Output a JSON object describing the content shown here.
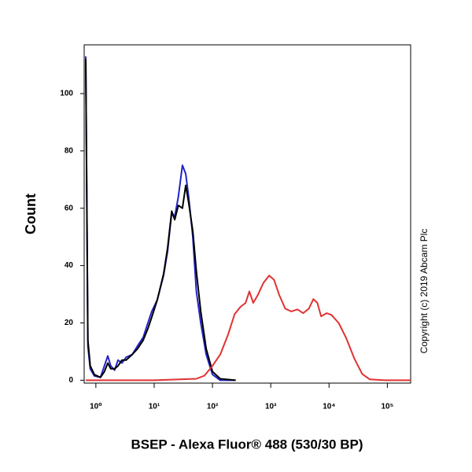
{
  "chart_data": {
    "type": "line",
    "xlabel": "BSEP - Alexa Fluor® 488 (530/30 BP)",
    "ylabel": "Count",
    "annotation": "Copyright (c) 2019 Abcam Plc",
    "xscale": "log",
    "xlim": [
      0.63,
      251000
    ],
    "ylim": [
      -1,
      117
    ],
    "xticks": [
      {
        "value": 1,
        "label": "10⁰"
      },
      {
        "value": 10,
        "label": "10¹"
      },
      {
        "value": 100,
        "label": "10²"
      },
      {
        "value": 1000,
        "label": "10³"
      },
      {
        "value": 10000,
        "label": "10⁴"
      },
      {
        "value": 100000,
        "label": "10⁵"
      }
    ],
    "yticks": [
      0,
      20,
      40,
      60,
      80,
      100
    ],
    "series": [
      {
        "color": "#2323c8",
        "x": [
          0.67,
          0.73,
          0.8,
          0.94,
          1.2,
          1.4,
          1.6,
          1.8,
          2.1,
          2.4,
          2.8,
          3.3,
          4.2,
          5.2,
          6.5,
          7.8,
          9.1,
          11.3,
          14.5,
          17,
          20,
          22.5,
          26,
          30.5,
          34.8,
          39,
          46,
          53,
          63,
          78,
          100,
          136,
          250
        ],
        "values": [
          113,
          12,
          4,
          1.5,
          1,
          5,
          8.5,
          5,
          3.5,
          7,
          6,
          8,
          9,
          12,
          15,
          20,
          24,
          28,
          36.5,
          45,
          58.5,
          57,
          64,
          75,
          72,
          64,
          50,
          31,
          20,
          9,
          2,
          0,
          0
        ]
      },
      {
        "color": "#000000",
        "x": [
          0.67,
          0.73,
          0.8,
          0.94,
          1.2,
          1.4,
          1.6,
          1.8,
          2.1,
          2.4,
          2.8,
          3.3,
          4.2,
          5.2,
          6.5,
          7.8,
          9.1,
          11.3,
          14.5,
          17,
          20,
          22.5,
          26,
          30.5,
          34.8,
          39,
          46,
          53,
          63,
          78,
          100,
          136,
          250
        ],
        "values": [
          112,
          14,
          5,
          2,
          1,
          3,
          6,
          4,
          4,
          5,
          7,
          7,
          9,
          11,
          14,
          18,
          22,
          28,
          37,
          46,
          59,
          56,
          61,
          60,
          68,
          62,
          52,
          38,
          24,
          11,
          3,
          0.5,
          0
        ]
      },
      {
        "color": "#e03232",
        "x": [
          0.67,
          10,
          53,
          73,
          100,
          136,
          186,
          240,
          300,
          370,
          430,
          500,
          600,
          750,
          940,
          1140,
          1400,
          1770,
          2250,
          2870,
          3600,
          4500,
          5400,
          6300,
          7300,
          9100,
          11000,
          14600,
          19800,
          27000,
          37000,
          50000,
          93000,
          251000
        ],
        "values": [
          0,
          0,
          0.5,
          1.6,
          5,
          9,
          16,
          23,
          25.5,
          27,
          31,
          27,
          29.7,
          34,
          36.5,
          35,
          29.7,
          25,
          24,
          24.7,
          23.4,
          25,
          28.3,
          27,
          22.3,
          23.4,
          22.8,
          20,
          14.6,
          7.7,
          2.2,
          0.3,
          0,
          0
        ]
      }
    ]
  }
}
